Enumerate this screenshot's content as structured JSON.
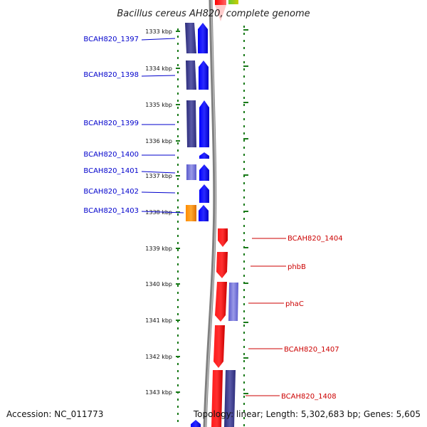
{
  "title": "Bacillus cereus AH820, complete genome",
  "accession": "Accession: NC_011773",
  "summary": "Topology: linear; Length: 5,302,683 bp; Genes: 5,605",
  "colors": {
    "label_forward": "#0000cc",
    "label_reverse": "#cc0000",
    "scale_tick": "#1a7a1a",
    "backbone": "#808080"
  },
  "scale_ticks": [
    "1333 kbp",
    "1334 kbp",
    "1335 kbp",
    "1336 kbp",
    "1337 kbp",
    "1338 kbp",
    "1339 kbp",
    "1340 kbp",
    "1341 kbp",
    "1342 kbp",
    "1343 kbp"
  ],
  "forward_genes": [
    "BCAH820_1397",
    "BCAH820_1398",
    "BCAH820_1399",
    "BCAH820_1400",
    "BCAH820_1401",
    "BCAH820_1402",
    "BCAH820_1403"
  ],
  "reverse_genes": [
    "BCAH820_1404",
    "phbB",
    "phaC",
    "BCAH820_1407",
    "BCAH820_1408"
  ]
}
